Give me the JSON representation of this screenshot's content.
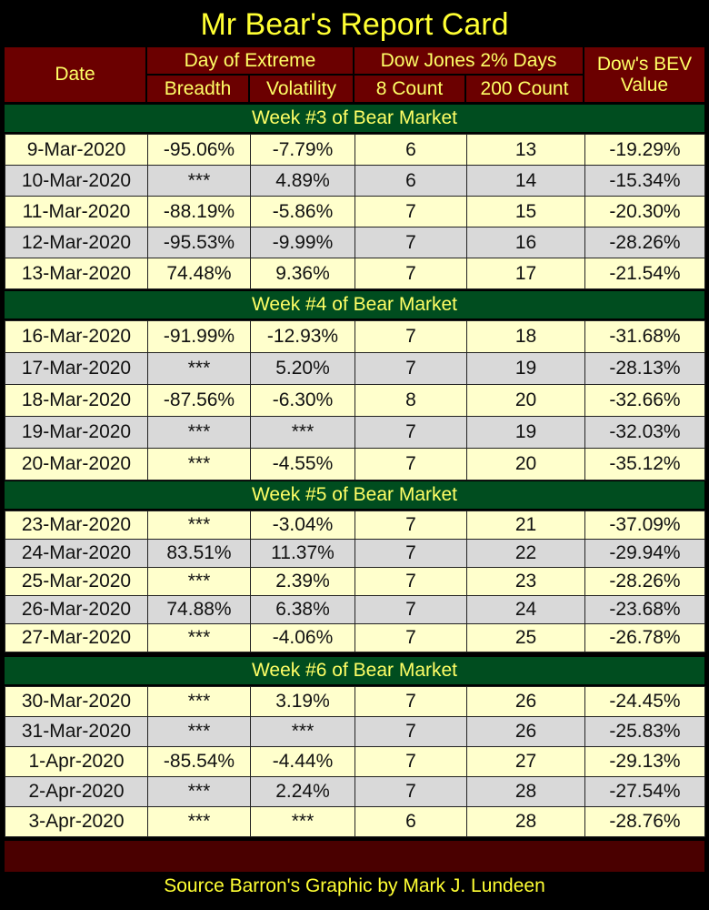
{
  "title": "Mr Bear's Report Card",
  "headers": {
    "date": "Date",
    "day_of_extreme": "Day of Extreme",
    "breadth": "Breadth",
    "volatility": "Volatility",
    "dow_jones_2pct": "Dow Jones 2% Days",
    "count8": "8 Count",
    "count200": "200 Count",
    "bev_line1": "Dow's BEV",
    "bev_line2": "Value"
  },
  "colors": {
    "title": "#ffff33",
    "header_bg": "#6b0000",
    "week_bg": "#004d1f",
    "row_light": "#ffffcc",
    "row_gray": "#d9d9d9"
  },
  "chart_data": {
    "type": "table",
    "columns": [
      "Date",
      "Breadth",
      "Volatility",
      "8 Count",
      "200 Count",
      "Dow's BEV Value"
    ],
    "weeks": [
      {
        "label": "Week #3 of Bear Market",
        "rows": [
          [
            "9-Mar-2020",
            "-95.06%",
            "-7.79%",
            "6",
            "13",
            "-19.29%"
          ],
          [
            "10-Mar-2020",
            "***",
            "4.89%",
            "6",
            "14",
            "-15.34%"
          ],
          [
            "11-Mar-2020",
            "-88.19%",
            "-5.86%",
            "7",
            "15",
            "-20.30%"
          ],
          [
            "12-Mar-2020",
            "-95.53%",
            "-9.99%",
            "7",
            "16",
            "-28.26%"
          ],
          [
            "13-Mar-2020",
            "74.48%",
            "9.36%",
            "7",
            "17",
            "-21.54%"
          ]
        ]
      },
      {
        "label": "Week #4 of Bear Market",
        "rows": [
          [
            "16-Mar-2020",
            "-91.99%",
            "-12.93%",
            "7",
            "18",
            "-31.68%"
          ],
          [
            "17-Mar-2020",
            "***",
            "5.20%",
            "7",
            "19",
            "-28.13%"
          ],
          [
            "18-Mar-2020",
            "-87.56%",
            "-6.30%",
            "8",
            "20",
            "-32.66%"
          ],
          [
            "19-Mar-2020",
            "***",
            "***",
            "7",
            "19",
            "-32.03%"
          ],
          [
            "20-Mar-2020",
            "***",
            "-4.55%",
            "7",
            "20",
            "-35.12%"
          ]
        ]
      },
      {
        "label": "Week #5 of Bear Market",
        "rows": [
          [
            "23-Mar-2020",
            "***",
            "-3.04%",
            "7",
            "21",
            "-37.09%"
          ],
          [
            "24-Mar-2020",
            "83.51%",
            "11.37%",
            "7",
            "22",
            "-29.94%"
          ],
          [
            "25-Mar-2020",
            "***",
            "2.39%",
            "7",
            "23",
            "-28.26%"
          ],
          [
            "26-Mar-2020",
            "74.88%",
            "6.38%",
            "7",
            "24",
            "-23.68%"
          ],
          [
            "27-Mar-2020",
            "***",
            "-4.06%",
            "7",
            "25",
            "-26.78%"
          ]
        ]
      },
      {
        "label": "Week #6 of Bear Market",
        "rows": [
          [
            "30-Mar-2020",
            "***",
            "3.19%",
            "7",
            "26",
            "-24.45%"
          ],
          [
            "31-Mar-2020",
            "***",
            "***",
            "7",
            "26",
            "-25.83%"
          ],
          [
            "1-Apr-2020",
            "-85.54%",
            "-4.44%",
            "7",
            "27",
            "-29.13%"
          ],
          [
            "2-Apr-2020",
            "***",
            "2.24%",
            "7",
            "28",
            "-27.54%"
          ],
          [
            "3-Apr-2020",
            "***",
            "***",
            "6",
            "28",
            "-28.76%"
          ]
        ]
      }
    ]
  },
  "footer": "Source Barron's  Graphic by Mark J. Lundeen"
}
